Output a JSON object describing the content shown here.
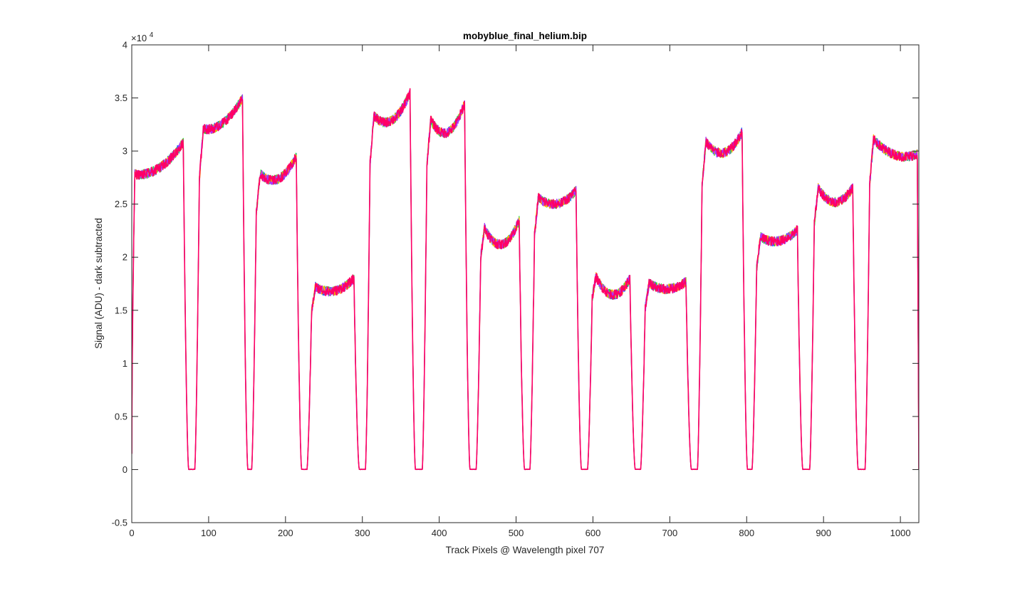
{
  "chart_data": {
    "type": "line",
    "title": "mobyblue_final_helium.bip",
    "xlabel": "Track Pixels @ Wavelength pixel 707",
    "ylabel": "Signal (ADU) - dark subtracted",
    "y_exponent_label": "×10",
    "y_exponent_power": "4",
    "xlim": [
      0,
      1024
    ],
    "ylim": [
      -0.5,
      4
    ],
    "y_scale_multiplier": 10000,
    "xticks": [
      0,
      100,
      200,
      300,
      400,
      500,
      600,
      700,
      800,
      900,
      1000
    ],
    "xtick_labels": [
      "0",
      "100",
      "200",
      "300",
      "400",
      "500",
      "600",
      "700",
      "800",
      "900",
      "1000"
    ],
    "yticks": [
      -0.5,
      0,
      0.5,
      1,
      1.5,
      2,
      2.5,
      3,
      3.5,
      4
    ],
    "ytick_labels": [
      "-0.5",
      "0",
      "0.5",
      "1",
      "1.5",
      "2",
      "2.5",
      "3",
      "3.5",
      "4"
    ],
    "grid": false,
    "legend": "none",
    "series_colors": [
      "#1f5fff",
      "#33dd33",
      "#ffb000",
      "#aa33ff",
      "#ff0066"
    ],
    "plateaus": [
      {
        "x_start": 4,
        "x_end": 67,
        "y_start": 2.78,
        "y_mid": 2.84,
        "y_end": 3.08
      },
      {
        "x_start": 88,
        "x_end": 144,
        "y_start": 3.22,
        "y_mid": 3.25,
        "y_end": 3.5
      },
      {
        "x_start": 162,
        "x_end": 214,
        "y_start": 2.83,
        "y_mid": 2.73,
        "y_end": 2.95
      },
      {
        "x_start": 234,
        "x_end": 289,
        "y_start": 1.75,
        "y_mid": 1.68,
        "y_end": 1.8
      },
      {
        "x_start": 310,
        "x_end": 362,
        "y_start": 3.38,
        "y_mid": 3.28,
        "y_end": 3.55
      },
      {
        "x_start": 384,
        "x_end": 433,
        "y_start": 3.38,
        "y_mid": 3.17,
        "y_end": 3.45
      },
      {
        "x_start": 454,
        "x_end": 504,
        "y_start": 2.36,
        "y_mid": 2.12,
        "y_end": 2.35
      },
      {
        "x_start": 524,
        "x_end": 578,
        "y_start": 2.6,
        "y_mid": 2.5,
        "y_end": 2.63
      },
      {
        "x_start": 599,
        "x_end": 648,
        "y_start": 1.9,
        "y_mid": 1.65,
        "y_end": 1.8
      },
      {
        "x_start": 668,
        "x_end": 721,
        "y_start": 1.78,
        "y_mid": 1.7,
        "y_end": 1.77
      },
      {
        "x_start": 742,
        "x_end": 794,
        "y_start": 3.15,
        "y_mid": 2.98,
        "y_end": 3.18
      },
      {
        "x_start": 813,
        "x_end": 866,
        "y_start": 2.22,
        "y_mid": 2.15,
        "y_end": 2.26
      },
      {
        "x_start": 888,
        "x_end": 938,
        "y_start": 2.72,
        "y_mid": 2.52,
        "y_end": 2.66
      },
      {
        "x_start": 960,
        "x_end": 1022,
        "y_start": 3.15,
        "y_mid": 2.97,
        "y_end": 2.97
      }
    ],
    "annotations": [
      {
        "x": 67,
        "y": 2.6,
        "text": ""
      }
    ]
  }
}
